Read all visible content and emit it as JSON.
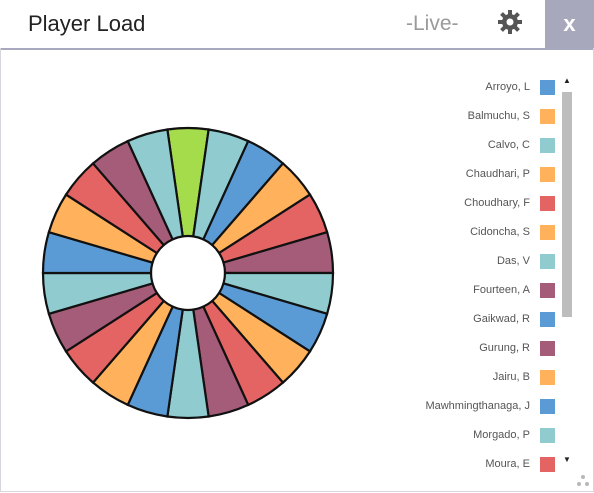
{
  "window": {
    "title": "Player Load",
    "status": "-Live-",
    "close_label": "x",
    "settings_icon": "gear-icon",
    "resize_icon": "resize-grip-icon"
  },
  "legend": {
    "items": [
      {
        "label": "Arroyo, L",
        "color": "#5b9bd5"
      },
      {
        "label": "Balmuchu, S",
        "color": "#ffb25b"
      },
      {
        "label": "Calvo, C",
        "color": "#8fcbcf"
      },
      {
        "label": "Chaudhari, P",
        "color": "#ffb25b"
      },
      {
        "label": "Choudhary, F",
        "color": "#e46363"
      },
      {
        "label": "Cidoncha, S",
        "color": "#ffb25b"
      },
      {
        "label": "Das, V",
        "color": "#8fcbcf"
      },
      {
        "label": "Fourteen, A",
        "color": "#a45c78"
      },
      {
        "label": "Gaikwad, R",
        "color": "#5b9bd5"
      },
      {
        "label": "Gurung, R",
        "color": "#a45c78"
      },
      {
        "label": "Jairu, B",
        "color": "#ffb25b"
      },
      {
        "label": "Mawhmingthanaga, J",
        "color": "#5b9bd5"
      },
      {
        "label": "Morgado, P",
        "color": "#8fcbcf"
      },
      {
        "label": "Moura, E",
        "color": "#e46363"
      }
    ],
    "scroll_up_label": "▲",
    "scroll_down_label": "▼"
  },
  "chart_data": {
    "type": "pie",
    "style": "donut",
    "slices": [
      {
        "value": 1,
        "color": "#a4dc4c"
      },
      {
        "value": 1,
        "color": "#8fcbcf"
      },
      {
        "value": 1,
        "color": "#5b9bd5"
      },
      {
        "value": 1,
        "color": "#ffb25b"
      },
      {
        "value": 1,
        "color": "#e46363"
      },
      {
        "value": 1,
        "color": "#a45c78"
      },
      {
        "value": 1,
        "color": "#8fcbcf"
      },
      {
        "value": 1,
        "color": "#5b9bd5"
      },
      {
        "value": 1,
        "color": "#ffb25b"
      },
      {
        "value": 1,
        "color": "#e46363"
      },
      {
        "value": 1,
        "color": "#a45c78"
      },
      {
        "value": 1,
        "color": "#8fcbcf"
      },
      {
        "value": 1,
        "color": "#5b9bd5"
      },
      {
        "value": 1,
        "color": "#ffb25b"
      },
      {
        "value": 1,
        "color": "#e46363"
      },
      {
        "value": 1,
        "color": "#a45c78"
      },
      {
        "value": 1,
        "color": "#8fcbcf"
      },
      {
        "value": 1,
        "color": "#5b9bd5"
      },
      {
        "value": 1,
        "color": "#ffb25b"
      },
      {
        "value": 1,
        "color": "#e46363"
      },
      {
        "value": 1,
        "color": "#a45c78"
      },
      {
        "value": 1,
        "color": "#8fcbcf"
      }
    ]
  }
}
